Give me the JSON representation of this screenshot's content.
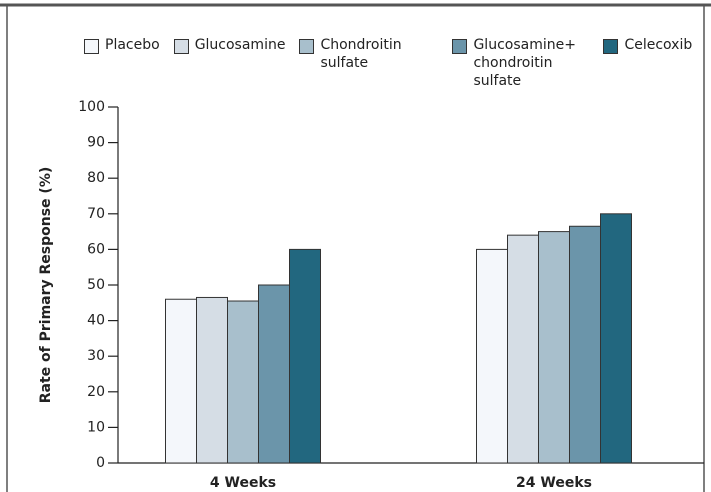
{
  "chart_data": {
    "type": "bar",
    "ylabel": "Rate of Primary Response (%)",
    "categories": [
      "4 Weeks",
      "24 Weeks"
    ],
    "series": [
      {
        "name": "Placebo",
        "color": "#f4f7fb",
        "values": [
          46,
          60
        ]
      },
      {
        "name": "Glucosamine",
        "color": "#d5dde5",
        "values": [
          46.5,
          64
        ]
      },
      {
        "name": "Chondroitin sulfate",
        "color": "#a8bfcc",
        "values": [
          45.5,
          65
        ]
      },
      {
        "name": "Glucosamine+ chondroitin sulfate",
        "color": "#6b95aa",
        "values": [
          50,
          66.5
        ]
      },
      {
        "name": "Celecoxib",
        "color": "#22677f",
        "values": [
          60,
          70
        ]
      }
    ],
    "ylim": [
      0,
      100
    ],
    "yticks": [
      0,
      10,
      20,
      30,
      40,
      50,
      60,
      70,
      80,
      90,
      100
    ],
    "grid": false,
    "legend": "top"
  }
}
